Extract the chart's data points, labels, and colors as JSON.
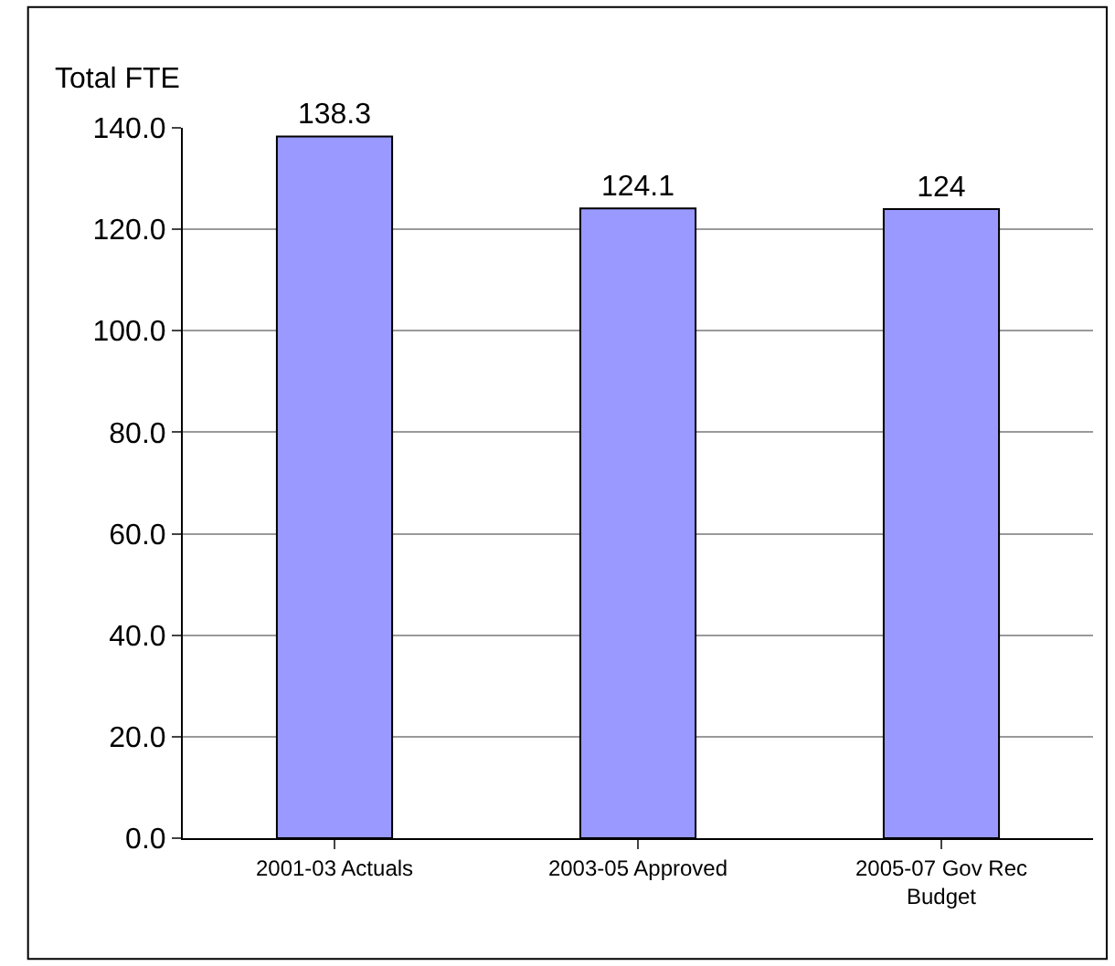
{
  "chart_data": {
    "type": "bar",
    "ylabel": "Total FTE",
    "categories": [
      "2001-03 Actuals",
      "2003-05 Approved",
      "2005-07 Gov Rec Budget"
    ],
    "values": [
      138.3,
      124.1,
      124
    ],
    "color": "#9999ff",
    "ylim": [
      0,
      140
    ],
    "yticks": [
      {
        "value": 0,
        "label": "0.0"
      },
      {
        "value": 20,
        "label": "20.0"
      },
      {
        "value": 40,
        "label": "40.0"
      },
      {
        "value": 60,
        "label": "60.0"
      },
      {
        "value": 80,
        "label": "80.0"
      },
      {
        "value": 100,
        "label": "100.0"
      },
      {
        "value": 120,
        "label": "120.0"
      },
      {
        "value": 140,
        "label": "140.0"
      }
    ],
    "grid": "y",
    "data_labels": true,
    "legend": false
  }
}
